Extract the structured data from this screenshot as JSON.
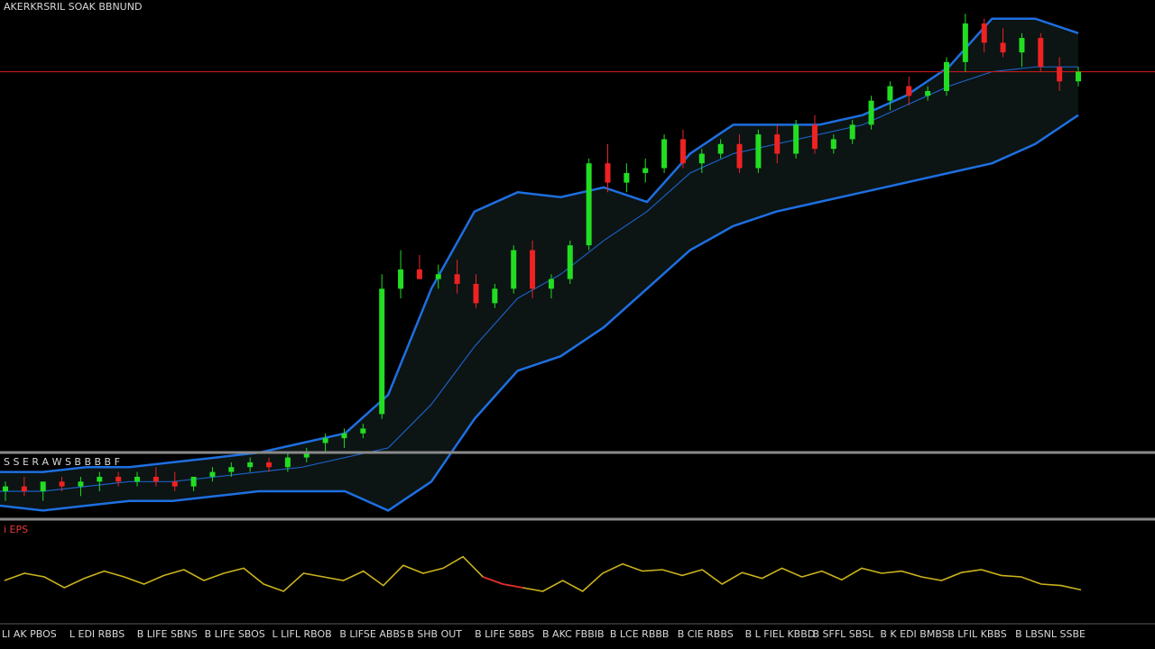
{
  "header": {
    "title": "AKERKRSRIL SOAK BBNUND"
  },
  "panels": {
    "lower_label": "S S E R A W S  B B  B B F",
    "indicator_label": "i EPS"
  },
  "x_tick_labels": [
    "LI AK PBOS",
    "L EDI RBBS",
    "B LIFE SBNS",
    "B LIFE SBOS",
    "L LIFL RBOB",
    "B LIFSE ABBS",
    "B SHB OUT",
    "B LIFE SBBS",
    "B AKC FBBIB",
    "B LCE RBBB",
    "B CIE RBBS",
    "B L FIEL KBBD",
    "B SFFL SBSL",
    "B K EDI BMBS",
    "B LFIL KBBS",
    "B LBSNL SSBE"
  ],
  "colors": {
    "background": "#000000",
    "up_candle": "#22dd22",
    "down_candle": "#ee2222",
    "band_line": "#1e6fe0",
    "middle_line": "#1a5fc0",
    "band_fill": "#0c1414",
    "resistance_line": "#c21a1a",
    "separator": "#8a8a8a",
    "oscillator_line": "#c9b21c",
    "oscillator_low": "#dd2a2a"
  },
  "chart_data": {
    "type": "candlestick",
    "title": "AKERKRSRIL SOAK BBNUND",
    "resistance_level": 0.87,
    "ylim": [
      0,
      1
    ],
    "bands": {
      "upper": [
        0.04,
        0.04,
        0.05,
        0.05,
        0.06,
        0.07,
        0.08,
        0.1,
        0.12,
        0.2,
        0.42,
        0.58,
        0.62,
        0.61,
        0.63,
        0.6,
        0.7,
        0.76,
        0.76,
        0.76,
        0.78,
        0.82,
        0.88,
        0.98,
        0.98,
        0.95
      ],
      "middle": [
        0.0,
        0.0,
        0.01,
        0.02,
        0.02,
        0.03,
        0.04,
        0.05,
        0.07,
        0.09,
        0.18,
        0.3,
        0.4,
        0.45,
        0.52,
        0.58,
        0.66,
        0.7,
        0.72,
        0.74,
        0.76,
        0.8,
        0.84,
        0.87,
        0.88,
        0.88
      ],
      "lower": [
        -0.03,
        -0.04,
        -0.03,
        -0.02,
        -0.02,
        -0.01,
        0.0,
        0.0,
        0.0,
        -0.04,
        0.02,
        0.15,
        0.25,
        0.28,
        0.34,
        0.42,
        0.5,
        0.55,
        0.58,
        0.6,
        0.62,
        0.64,
        0.66,
        0.68,
        0.72,
        0.78
      ]
    },
    "candles": [
      {
        "o": 0.0,
        "h": 0.02,
        "l": -0.02,
        "c": 0.01
      },
      {
        "o": 0.01,
        "h": 0.03,
        "l": -0.01,
        "c": 0.0
      },
      {
        "o": 0.0,
        "h": 0.02,
        "l": -0.02,
        "c": 0.02
      },
      {
        "o": 0.02,
        "h": 0.03,
        "l": 0.0,
        "c": 0.01
      },
      {
        "o": 0.01,
        "h": 0.03,
        "l": -0.01,
        "c": 0.02
      },
      {
        "o": 0.02,
        "h": 0.04,
        "l": 0.0,
        "c": 0.03
      },
      {
        "o": 0.03,
        "h": 0.04,
        "l": 0.01,
        "c": 0.02
      },
      {
        "o": 0.02,
        "h": 0.04,
        "l": 0.01,
        "c": 0.03
      },
      {
        "o": 0.03,
        "h": 0.05,
        "l": 0.01,
        "c": 0.02
      },
      {
        "o": 0.02,
        "h": 0.04,
        "l": 0.0,
        "c": 0.01
      },
      {
        "o": 0.01,
        "h": 0.03,
        "l": 0.0,
        "c": 0.03
      },
      {
        "o": 0.03,
        "h": 0.05,
        "l": 0.02,
        "c": 0.04
      },
      {
        "o": 0.04,
        "h": 0.06,
        "l": 0.03,
        "c": 0.05
      },
      {
        "o": 0.05,
        "h": 0.07,
        "l": 0.04,
        "c": 0.06
      },
      {
        "o": 0.06,
        "h": 0.07,
        "l": 0.04,
        "c": 0.05
      },
      {
        "o": 0.05,
        "h": 0.08,
        "l": 0.04,
        "c": 0.07
      },
      {
        "o": 0.07,
        "h": 0.09,
        "l": 0.06,
        "c": 0.08
      },
      {
        "o": 0.1,
        "h": 0.12,
        "l": 0.08,
        "c": 0.11
      },
      {
        "o": 0.11,
        "h": 0.13,
        "l": 0.09,
        "c": 0.12
      },
      {
        "o": 0.12,
        "h": 0.14,
        "l": 0.11,
        "c": 0.13
      },
      {
        "o": 0.16,
        "h": 0.45,
        "l": 0.15,
        "c": 0.42
      },
      {
        "o": 0.42,
        "h": 0.5,
        "l": 0.4,
        "c": 0.46
      },
      {
        "o": 0.46,
        "h": 0.49,
        "l": 0.44,
        "c": 0.44
      },
      {
        "o": 0.44,
        "h": 0.47,
        "l": 0.42,
        "c": 0.45
      },
      {
        "o": 0.45,
        "h": 0.48,
        "l": 0.41,
        "c": 0.43
      },
      {
        "o": 0.43,
        "h": 0.45,
        "l": 0.38,
        "c": 0.39
      },
      {
        "o": 0.39,
        "h": 0.43,
        "l": 0.38,
        "c": 0.42
      },
      {
        "o": 0.42,
        "h": 0.51,
        "l": 0.41,
        "c": 0.5
      },
      {
        "o": 0.5,
        "h": 0.52,
        "l": 0.4,
        "c": 0.42
      },
      {
        "o": 0.42,
        "h": 0.45,
        "l": 0.4,
        "c": 0.44
      },
      {
        "o": 0.44,
        "h": 0.52,
        "l": 0.43,
        "c": 0.51
      },
      {
        "o": 0.51,
        "h": 0.69,
        "l": 0.5,
        "c": 0.68
      },
      {
        "o": 0.68,
        "h": 0.72,
        "l": 0.62,
        "c": 0.64
      },
      {
        "o": 0.64,
        "h": 0.68,
        "l": 0.62,
        "c": 0.66
      },
      {
        "o": 0.66,
        "h": 0.69,
        "l": 0.64,
        "c": 0.67
      },
      {
        "o": 0.67,
        "h": 0.74,
        "l": 0.66,
        "c": 0.73
      },
      {
        "o": 0.73,
        "h": 0.75,
        "l": 0.67,
        "c": 0.68
      },
      {
        "o": 0.68,
        "h": 0.71,
        "l": 0.66,
        "c": 0.7
      },
      {
        "o": 0.7,
        "h": 0.73,
        "l": 0.69,
        "c": 0.72
      },
      {
        "o": 0.72,
        "h": 0.74,
        "l": 0.66,
        "c": 0.67
      },
      {
        "o": 0.67,
        "h": 0.75,
        "l": 0.66,
        "c": 0.74
      },
      {
        "o": 0.74,
        "h": 0.76,
        "l": 0.68,
        "c": 0.7
      },
      {
        "o": 0.7,
        "h": 0.77,
        "l": 0.69,
        "c": 0.76
      },
      {
        "o": 0.76,
        "h": 0.78,
        "l": 0.7,
        "c": 0.71
      },
      {
        "o": 0.71,
        "h": 0.74,
        "l": 0.7,
        "c": 0.73
      },
      {
        "o": 0.73,
        "h": 0.77,
        "l": 0.72,
        "c": 0.76
      },
      {
        "o": 0.76,
        "h": 0.82,
        "l": 0.75,
        "c": 0.81
      },
      {
        "o": 0.81,
        "h": 0.85,
        "l": 0.79,
        "c": 0.84
      },
      {
        "o": 0.84,
        "h": 0.86,
        "l": 0.8,
        "c": 0.82
      },
      {
        "o": 0.82,
        "h": 0.84,
        "l": 0.81,
        "c": 0.83
      },
      {
        "o": 0.83,
        "h": 0.9,
        "l": 0.82,
        "c": 0.89
      },
      {
        "o": 0.89,
        "h": 0.99,
        "l": 0.87,
        "c": 0.97
      },
      {
        "o": 0.97,
        "h": 0.98,
        "l": 0.91,
        "c": 0.93
      },
      {
        "o": 0.93,
        "h": 0.96,
        "l": 0.9,
        "c": 0.91
      },
      {
        "o": 0.91,
        "h": 0.95,
        "l": 0.88,
        "c": 0.94
      },
      {
        "o": 0.94,
        "h": 0.95,
        "l": 0.87,
        "c": 0.88
      },
      {
        "o": 0.88,
        "h": 0.9,
        "l": 0.83,
        "c": 0.85
      },
      {
        "o": 0.85,
        "h": 0.88,
        "l": 0.84,
        "c": 0.87
      }
    ],
    "oscillator": [
      0.45,
      0.55,
      0.5,
      0.35,
      0.48,
      0.58,
      0.5,
      0.4,
      0.52,
      0.6,
      0.45,
      0.55,
      0.62,
      0.4,
      0.3,
      0.55,
      0.5,
      0.45,
      0.58,
      0.38,
      0.66,
      0.55,
      0.62,
      0.78,
      0.5,
      0.4,
      0.35,
      0.3,
      0.45,
      0.3,
      0.55,
      0.68,
      0.58,
      0.6,
      0.52,
      0.6,
      0.4,
      0.56,
      0.48,
      0.62,
      0.5,
      0.58,
      0.46,
      0.62,
      0.55,
      0.58,
      0.5,
      0.45,
      0.56,
      0.6,
      0.52,
      0.5,
      0.4,
      0.38,
      0.32
    ],
    "indicator_highlight": [
      [
        24,
        26
      ]
    ]
  }
}
